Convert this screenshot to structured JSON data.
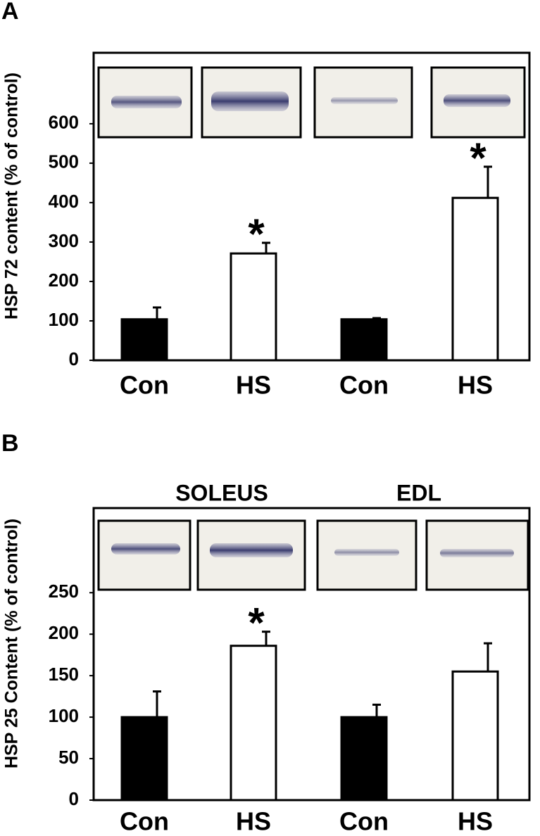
{
  "chart_data": [
    {
      "type": "bar",
      "panel": "A",
      "ylabel": "HSP 72 content (% of control)",
      "categories": [
        "Con",
        "HS",
        "Con",
        "HS"
      ],
      "values": [
        104,
        271,
        104,
        412
      ],
      "errors": [
        30,
        27,
        3,
        79
      ],
      "colors": [
        "#000000",
        "#ffffff",
        "#000000",
        "#ffffff"
      ],
      "annotations": [
        null,
        "*",
        null,
        "*"
      ],
      "ylim": [
        0,
        780
      ],
      "yticks": [
        0,
        100,
        200,
        300,
        400,
        500,
        600
      ]
    },
    {
      "type": "bar",
      "panel": "B",
      "ylabel": "HSP 25 Content (% of control)",
      "group_labels": [
        "SOLEUS",
        "EDL"
      ],
      "categories": [
        "Con",
        "HS",
        "Con",
        "HS"
      ],
      "values": [
        100,
        186,
        100,
        155
      ],
      "errors": [
        31,
        17,
        15,
        34
      ],
      "colors": [
        "#000000",
        "#ffffff",
        "#000000",
        "#ffffff"
      ],
      "annotations": [
        null,
        "*",
        null,
        null
      ],
      "ylim": [
        0,
        352
      ],
      "yticks": [
        0,
        50,
        100,
        150,
        200,
        250
      ]
    }
  ]
}
